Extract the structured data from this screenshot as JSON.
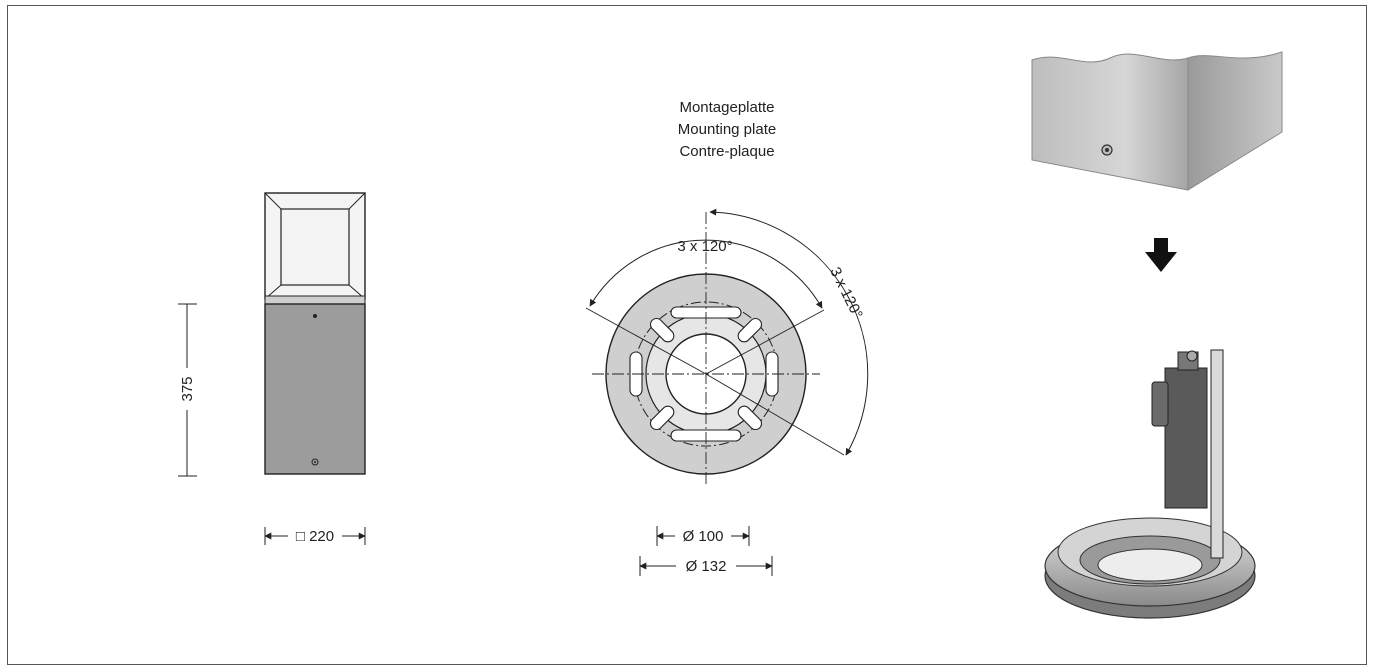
{
  "plate_title": {
    "de": "Montageplatte",
    "en": "Mounting plate",
    "fr": "Contre-plaque"
  },
  "bollard": {
    "height_label": "375",
    "width_label": "□ 220"
  },
  "plate": {
    "angle_label_left": "3 x 120°",
    "angle_label_right": "3 x 120°",
    "inner_diameter_label": "Ø 100",
    "outer_diameter_label": "Ø 132"
  },
  "colors": {
    "line": "#222222",
    "housing": "#9c9c9c",
    "plate_fill": "#cfcfcf",
    "background": "#ffffff"
  }
}
